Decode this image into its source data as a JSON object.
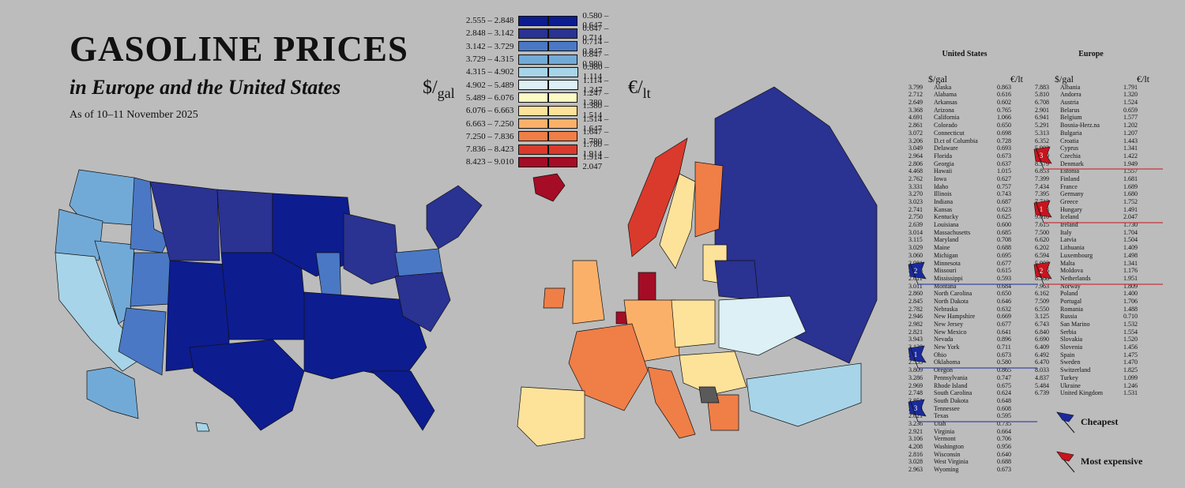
{
  "title": "GASOLINE PRICES",
  "subtitle": "in Europe and the United States",
  "date": "As of 10–11 November 2025",
  "units": {
    "usd": "$",
    "usd_sub": "gal",
    "eur": "€",
    "eur_sub": "lt"
  },
  "legend": [
    {
      "usd": "2.555 – 2.848",
      "eur": "0.580 – 0.647",
      "color": "#0d1c8f"
    },
    {
      "usd": "2.848 – 3.142",
      "eur": "0.647 – 0.714",
      "color": "#2a3292"
    },
    {
      "usd": "3.142 – 3.729",
      "eur": "0.714 – 0.847",
      "color": "#4a78c4"
    },
    {
      "usd": "3.729 – 4.315",
      "eur": "0.847 – 0.980",
      "color": "#72aad7"
    },
    {
      "usd": "4.315 – 4.902",
      "eur": "0.980 – 1.114",
      "color": "#a7d4e8"
    },
    {
      "usd": "4.902 – 5.489",
      "eur": "1.114 – 1.247",
      "color": "#dcf0f5"
    },
    {
      "usd": "5.489 – 6.076",
      "eur": "1.247 – 1.380",
      "color": "#fdfbc4"
    },
    {
      "usd": "6.076 – 6.663",
      "eur": "1.380 – 1.514",
      "color": "#fde29a"
    },
    {
      "usd": "6.663 – 7.250",
      "eur": "1.514 – 1.647",
      "color": "#fbb06a"
    },
    {
      "usd": "7.250 – 7.836",
      "eur": "1.647 – 1.780",
      "color": "#f07e47"
    },
    {
      "usd": "7.836 – 8.423",
      "eur": "1.780 – 1.914",
      "color": "#d93a2c"
    },
    {
      "usd": "8.423 – 9.010",
      "eur": "1.914 – 2.047",
      "color": "#a50c25"
    }
  ],
  "us_table": {
    "header": "United States",
    "rows": [
      [
        "3.799",
        "Alaska",
        "0.863"
      ],
      [
        "2.712",
        "Alabama",
        "0.616"
      ],
      [
        "2.649",
        "Arkansas",
        "0.602"
      ],
      [
        "3.368",
        "Arizona",
        "0.765"
      ],
      [
        "4.691",
        "California",
        "1.066"
      ],
      [
        "2.861",
        "Colorado",
        "0.650"
      ],
      [
        "3.072",
        "Connecticut",
        "0.698"
      ],
      [
        "3.206",
        "D.ct of Columbia",
        "0.728"
      ],
      [
        "3.049",
        "Delaware",
        "0.693"
      ],
      [
        "2.964",
        "Florida",
        "0.673"
      ],
      [
        "2.806",
        "Georgia",
        "0.637"
      ],
      [
        "4.468",
        "Hawaii",
        "1.015"
      ],
      [
        "2.762",
        "Iowa",
        "0.627"
      ],
      [
        "3.331",
        "Idaho",
        "0.757"
      ],
      [
        "3.270",
        "Illinois",
        "0.743"
      ],
      [
        "3.023",
        "Indiana",
        "0.687"
      ],
      [
        "2.741",
        "Kansas",
        "0.623"
      ],
      [
        "2.750",
        "Kentucky",
        "0.625"
      ],
      [
        "2.639",
        "Louisiana",
        "0.600"
      ],
      [
        "3.014",
        "Massachusetts",
        "0.685"
      ],
      [
        "3.115",
        "Maryland",
        "0.708"
      ],
      [
        "3.029",
        "Maine",
        "0.688"
      ],
      [
        "3.060",
        "Michigan",
        "0.695"
      ],
      [
        "2.981",
        "Minnesota",
        "0.677"
      ],
      [
        "2.705",
        "Missouri",
        "0.615"
      ],
      [
        "2.611",
        "Mississippi",
        "0.593"
      ],
      [
        "3.011",
        "Montana",
        "0.684"
      ],
      [
        "2.860",
        "North Carolina",
        "0.650"
      ],
      [
        "2.845",
        "North Dakota",
        "0.646"
      ],
      [
        "2.782",
        "Nebraska",
        "0.632"
      ],
      [
        "2.946",
        "New Hampshire",
        "0.669"
      ],
      [
        "2.982",
        "New Jersey",
        "0.677"
      ],
      [
        "2.821",
        "New Mexico",
        "0.641"
      ],
      [
        "3.943",
        "Nevada",
        "0.896"
      ],
      [
        "3.128",
        "New York",
        "0.711"
      ],
      [
        "2.961",
        "Ohio",
        "0.673"
      ],
      [
        "2.555",
        "Oklahoma",
        "0.580"
      ],
      [
        "3.809",
        "Oregon",
        "0.865"
      ],
      [
        "3.286",
        "Pennsylvania",
        "0.747"
      ],
      [
        "2.969",
        "Rhode Island",
        "0.675"
      ],
      [
        "2.748",
        "South Carolina",
        "0.624"
      ],
      [
        "2.851",
        "South Dakota",
        "0.648"
      ],
      [
        "2.674",
        "Tennessee",
        "0.608"
      ],
      [
        "2.621",
        "Texas",
        "0.595"
      ],
      [
        "3.236",
        "Utah",
        "0.735"
      ],
      [
        "2.921",
        "Virginia",
        "0.664"
      ],
      [
        "3.106",
        "Vermont",
        "0.706"
      ],
      [
        "4.208",
        "Washington",
        "0.956"
      ],
      [
        "2.816",
        "Wisconsin",
        "0.640"
      ],
      [
        "3.028",
        "West Virginia",
        "0.688"
      ],
      [
        "2.963",
        "Wyoming",
        "0.673"
      ]
    ]
  },
  "eu_table": {
    "header": "Europe",
    "rows": [
      [
        "7.883",
        "Albania",
        "1.791"
      ],
      [
        "5.810",
        "Andorra",
        "1.320"
      ],
      [
        "6.708",
        "Austria",
        "1.524"
      ],
      [
        "2.901",
        "Belarus",
        "0.659"
      ],
      [
        "6.941",
        "Belgium",
        "1.577"
      ],
      [
        "5.291",
        "Bosnia-Herz.na",
        "1.202"
      ],
      [
        "5.313",
        "Bulgaria",
        "1.207"
      ],
      [
        "6.352",
        "Croatia",
        "1.443"
      ],
      [
        "5.903",
        "Cyprus",
        "1.341"
      ],
      [
        "6.259",
        "Czechia",
        "1.422"
      ],
      [
        "8.579",
        "Denmark",
        "1.949"
      ],
      [
        "6.853",
        "Estonia",
        "1.557"
      ],
      [
        "7.399",
        "Finland",
        "1.681"
      ],
      [
        "7.434",
        "France",
        "1.689"
      ],
      [
        "7.395",
        "Germany",
        "1.680"
      ],
      [
        "7.712",
        "Greece",
        "1.752"
      ],
      [
        "6.563",
        "Hungary",
        "1.491"
      ],
      [
        "9.010",
        "Iceland",
        "2.047"
      ],
      [
        "7.615",
        "Ireland",
        "1.730"
      ],
      [
        "7.500",
        "Italy",
        "1.704"
      ],
      [
        "6.620",
        "Latvia",
        "1.504"
      ],
      [
        "6.202",
        "Lithuania",
        "1.409"
      ],
      [
        "6.594",
        "Luxembourg",
        "1.498"
      ],
      [
        "5.903",
        "Malta",
        "1.341"
      ],
      [
        "5.176",
        "Moldova",
        "1.176"
      ],
      [
        "8.588",
        "Netherlands",
        "1.951"
      ],
      [
        "7.963",
        "Norway",
        "1.809"
      ],
      [
        "6.162",
        "Poland",
        "1.400"
      ],
      [
        "7.509",
        "Portugal",
        "1.706"
      ],
      [
        "6.550",
        "Romania",
        "1.488"
      ],
      [
        "3.125",
        "Russia",
        "0.710"
      ],
      [
        "6.743",
        "San Marino",
        "1.532"
      ],
      [
        "6.840",
        "Serbia",
        "1.554"
      ],
      [
        "6.690",
        "Slovakia",
        "1.520"
      ],
      [
        "6.409",
        "Slovenia",
        "1.456"
      ],
      [
        "6.492",
        "Spain",
        "1.475"
      ],
      [
        "6.470",
        "Sweden",
        "1.470"
      ],
      [
        "8.033",
        "Switzerland",
        "1.825"
      ],
      [
        "4.837",
        "Turkey",
        "1.099"
      ],
      [
        "5.484",
        "Ukraine",
        "1.246"
      ],
      [
        "6.739",
        "United Kingdom",
        "1.531"
      ]
    ]
  },
  "rank_flags": {
    "us": [
      {
        "rank": "2",
        "row": 25
      },
      {
        "rank": "1",
        "row": 36
      },
      {
        "rank": "3",
        "row": 43
      }
    ],
    "eu": [
      {
        "rank": "3",
        "row": 10
      },
      {
        "rank": "1",
        "row": 17
      },
      {
        "rank": "2",
        "row": 25
      }
    ]
  },
  "key": {
    "cheapest": "Cheapest",
    "most_expensive": "Most expensive",
    "cheap_color": "#1a2a9c",
    "expensive_color": "#c8141e"
  }
}
